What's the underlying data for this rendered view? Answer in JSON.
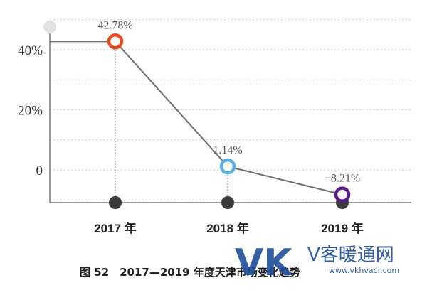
{
  "chart_data": {
    "type": "line",
    "categories": [
      "2017 年",
      "2018 年",
      "2019 年"
    ],
    "values": [
      42.78,
      1.14,
      -8.21
    ],
    "data_labels": [
      "42.78%",
      "1.14%",
      "−8.21%"
    ],
    "point_colors": [
      "#e8461e",
      "#5aaee3",
      "#5b1a8c"
    ],
    "y_ticks": [
      {
        "value": 40,
        "label": "40%"
      },
      {
        "value": 20,
        "label": "20%"
      },
      {
        "value": 0,
        "label": "0"
      }
    ],
    "ylim": [
      -10,
      52
    ],
    "grid": true,
    "title": "图 52　2017—2019 年度天津市场变化趋势"
  },
  "watermark": {
    "letters": "VK",
    "brand": "V客暖通网",
    "url": "www.vkhvacr.com"
  }
}
